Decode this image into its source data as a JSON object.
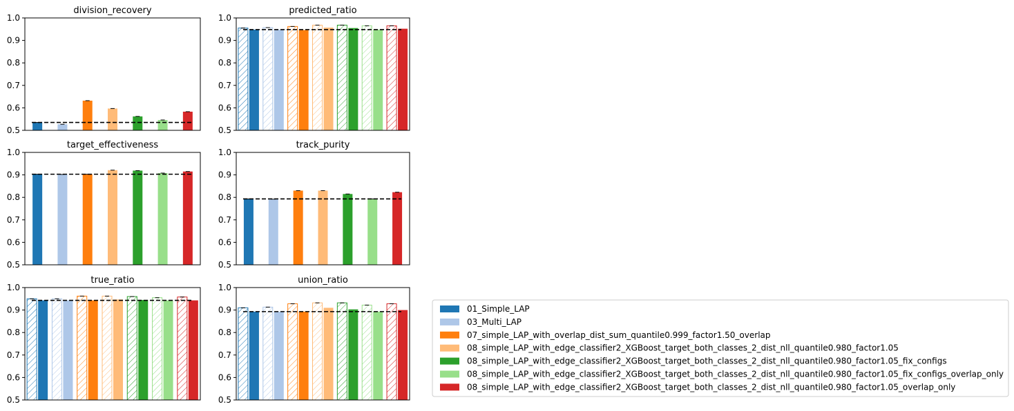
{
  "colors": [
    "#1f77b4",
    "#aec7e8",
    "#ff7f0e",
    "#ffbb78",
    "#2ca02c",
    "#98df8a",
    "#d62728"
  ],
  "legend": {
    "placement": "lower-right",
    "entries": [
      "01_Simple_LAP",
      "03_Multi_LAP",
      "07_simple_LAP_with_overlap_dist_sum_quantile0.999_factor1.50_overlap",
      "08_simple_LAP_with_edge_classifier2_XGBoost_target_both_classes_2_dist_nll_quantile0.980_factor1.05",
      "08_simple_LAP_with_edge_classifier2_XGBoost_target_both_classes_2_dist_nll_quantile0.980_factor1.05_fix_configs",
      "08_simple_LAP_with_edge_classifier2_XGBoost_target_both_classes_2_dist_nll_quantile0.980_factor1.05_fix_configs_overlap_only",
      "08_simple_LAP_with_edge_classifier2_XGBoost_target_both_classes_2_dist_nll_quantile0.980_factor1.05_overlap_only"
    ]
  },
  "chart_data": [
    {
      "type": "bar",
      "title": "division_recovery",
      "ylim": [
        0.5,
        1.0
      ],
      "yticks": [
        "0.5",
        "0.6",
        "0.7",
        "0.8",
        "0.9",
        "1.0"
      ],
      "grid": false,
      "paired": false,
      "reference_line": 0.535,
      "series": [
        {
          "name": "01_Simple_LAP",
          "values": [
            0.535
          ]
        },
        {
          "name": "03_Multi_LAP",
          "values": [
            0.527
          ]
        },
        {
          "name": "07_simple_LAP_with_overlap_dist_sum_quantile0.999_factor1.50_overlap",
          "values": [
            0.632
          ]
        },
        {
          "name": "08_simple_LAP_with_edge_classifier2_XGBoost_target_both_classes_2_dist_nll_quantile0.980_factor1.05",
          "values": [
            0.597
          ]
        },
        {
          "name": "08_simple_LAP_with_edge_classifier2_XGBoost_target_both_classes_2_dist_nll_quantile0.980_factor1.05_fix_configs",
          "values": [
            0.562
          ]
        },
        {
          "name": "08_simple_LAP_with_edge_classifier2_XGBoost_target_both_classes_2_dist_nll_quantile0.980_factor1.05_fix_configs_overlap_only",
          "values": [
            0.546
          ]
        },
        {
          "name": "08_simple_LAP_with_edge_classifier2_XGBoost_target_both_classes_2_dist_nll_quantile0.980_factor1.05_overlap_only",
          "values": [
            0.583
          ]
        }
      ]
    },
    {
      "type": "bar",
      "title": "predicted_ratio",
      "ylim": [
        0.5,
        1.0
      ],
      "yticks": [
        "0.5",
        "0.6",
        "0.7",
        "0.8",
        "0.9",
        "1.0"
      ],
      "grid": false,
      "paired": true,
      "reference_line": 0.948,
      "series": [
        {
          "name": "01_Simple_LAP",
          "values": [
            0.955,
            0.948
          ]
        },
        {
          "name": "03_Multi_LAP",
          "values": [
            0.957,
            0.948
          ]
        },
        {
          "name": "07_simple_LAP_with_overlap_dist_sum_quantile0.999_factor1.50_overlap",
          "values": [
            0.962,
            0.946
          ]
        },
        {
          "name": "08_simple_LAP_with_edge_classifier2_XGBoost_target_both_classes_2_dist_nll_quantile0.980_factor1.05",
          "values": [
            0.968,
            0.957
          ]
        },
        {
          "name": "08_simple_LAP_with_edge_classifier2_XGBoost_target_both_classes_2_dist_nll_quantile0.980_factor1.05_fix_configs",
          "values": [
            0.968,
            0.955
          ]
        },
        {
          "name": "08_simple_LAP_with_edge_classifier2_XGBoost_target_both_classes_2_dist_nll_quantile0.980_factor1.05_fix_configs_overlap_only",
          "values": [
            0.965,
            0.948
          ]
        },
        {
          "name": "08_simple_LAP_with_edge_classifier2_XGBoost_target_both_classes_2_dist_nll_quantile0.980_factor1.05_overlap_only",
          "values": [
            0.965,
            0.952
          ]
        }
      ]
    },
    {
      "type": "bar",
      "title": "target_effectiveness",
      "ylim": [
        0.5,
        1.0
      ],
      "yticks": [
        "0.5",
        "0.6",
        "0.7",
        "0.8",
        "0.9",
        "1.0"
      ],
      "grid": false,
      "paired": false,
      "reference_line": 0.903,
      "series": [
        {
          "name": "01_Simple_LAP",
          "values": [
            0.903
          ]
        },
        {
          "name": "03_Multi_LAP",
          "values": [
            0.902
          ]
        },
        {
          "name": "07_simple_LAP_with_overlap_dist_sum_quantile0.999_factor1.50_overlap",
          "values": [
            0.903
          ]
        },
        {
          "name": "08_simple_LAP_with_edge_classifier2_XGBoost_target_both_classes_2_dist_nll_quantile0.980_factor1.05",
          "values": [
            0.921
          ]
        },
        {
          "name": "08_simple_LAP_with_edge_classifier2_XGBoost_target_both_classes_2_dist_nll_quantile0.980_factor1.05_fix_configs",
          "values": [
            0.919
          ]
        },
        {
          "name": "08_simple_LAP_with_edge_classifier2_XGBoost_target_both_classes_2_dist_nll_quantile0.980_factor1.05_fix_configs_overlap_only",
          "values": [
            0.908
          ]
        },
        {
          "name": "08_simple_LAP_with_edge_classifier2_XGBoost_target_both_classes_2_dist_nll_quantile0.980_factor1.05_overlap_only",
          "values": [
            0.915
          ]
        }
      ]
    },
    {
      "type": "bar",
      "title": "track_purity",
      "ylim": [
        0.5,
        1.0
      ],
      "yticks": [
        "0.5",
        "0.6",
        "0.7",
        "0.8",
        "0.9",
        "1.0"
      ],
      "grid": false,
      "paired": false,
      "reference_line": 0.793,
      "series": [
        {
          "name": "01_Simple_LAP",
          "values": [
            0.793
          ]
        },
        {
          "name": "03_Multi_LAP",
          "values": [
            0.792
          ]
        },
        {
          "name": "07_simple_LAP_with_overlap_dist_sum_quantile0.999_factor1.50_overlap",
          "values": [
            0.83
          ]
        },
        {
          "name": "08_simple_LAP_with_edge_classifier2_XGBoost_target_both_classes_2_dist_nll_quantile0.980_factor1.05",
          "values": [
            0.83
          ]
        },
        {
          "name": "08_simple_LAP_with_edge_classifier2_XGBoost_target_both_classes_2_dist_nll_quantile0.980_factor1.05_fix_configs",
          "values": [
            0.815
          ]
        },
        {
          "name": "08_simple_LAP_with_edge_classifier2_XGBoost_target_both_classes_2_dist_nll_quantile0.980_factor1.05_fix_configs_overlap_only",
          "values": [
            0.793
          ]
        },
        {
          "name": "08_simple_LAP_with_edge_classifier2_XGBoost_target_both_classes_2_dist_nll_quantile0.980_factor1.05_overlap_only",
          "values": [
            0.823
          ]
        }
      ]
    },
    {
      "type": "bar",
      "title": "true_ratio",
      "ylim": [
        0.5,
        1.0
      ],
      "yticks": [
        "0.5",
        "0.6",
        "0.7",
        "0.8",
        "0.9",
        "1.0"
      ],
      "grid": false,
      "paired": true,
      "reference_line": 0.943,
      "series": [
        {
          "name": "01_Simple_LAP",
          "values": [
            0.95,
            0.943
          ]
        },
        {
          "name": "03_Multi_LAP",
          "values": [
            0.95,
            0.943
          ]
        },
        {
          "name": "07_simple_LAP_with_overlap_dist_sum_quantile0.999_factor1.50_overlap",
          "values": [
            0.962,
            0.943
          ]
        },
        {
          "name": "08_simple_LAP_with_edge_classifier2_XGBoost_target_both_classes_2_dist_nll_quantile0.980_factor1.05",
          "values": [
            0.962,
            0.947
          ]
        },
        {
          "name": "08_simple_LAP_with_edge_classifier2_XGBoost_target_both_classes_2_dist_nll_quantile0.980_factor1.05_fix_configs",
          "values": [
            0.96,
            0.945
          ]
        },
        {
          "name": "08_simple_LAP_with_edge_classifier2_XGBoost_target_both_classes_2_dist_nll_quantile0.980_factor1.05_fix_configs_overlap_only",
          "values": [
            0.955,
            0.943
          ]
        },
        {
          "name": "08_simple_LAP_with_edge_classifier2_XGBoost_target_both_classes_2_dist_nll_quantile0.980_factor1.05_overlap_only",
          "values": [
            0.958,
            0.943
          ]
        }
      ]
    },
    {
      "type": "bar",
      "title": "union_ratio",
      "ylim": [
        0.5,
        1.0
      ],
      "yticks": [
        "0.5",
        "0.6",
        "0.7",
        "0.8",
        "0.9",
        "1.0"
      ],
      "grid": false,
      "paired": true,
      "reference_line": 0.893,
      "series": [
        {
          "name": "01_Simple_LAP",
          "values": [
            0.91,
            0.893
          ]
        },
        {
          "name": "03_Multi_LAP",
          "values": [
            0.913,
            0.893
          ]
        },
        {
          "name": "07_simple_LAP_with_overlap_dist_sum_quantile0.999_factor1.50_overlap",
          "values": [
            0.928,
            0.893
          ]
        },
        {
          "name": "08_simple_LAP_with_edge_classifier2_XGBoost_target_both_classes_2_dist_nll_quantile0.980_factor1.05",
          "values": [
            0.932,
            0.91
          ]
        },
        {
          "name": "08_simple_LAP_with_edge_classifier2_XGBoost_target_both_classes_2_dist_nll_quantile0.980_factor1.05_fix_configs",
          "values": [
            0.932,
            0.903
          ]
        },
        {
          "name": "08_simple_LAP_with_edge_classifier2_XGBoost_target_both_classes_2_dist_nll_quantile0.980_factor1.05_fix_configs_overlap_only",
          "values": [
            0.922,
            0.893
          ]
        },
        {
          "name": "08_simple_LAP_with_edge_classifier2_XGBoost_target_both_classes_2_dist_nll_quantile0.980_factor1.05_overlap_only",
          "values": [
            0.928,
            0.9
          ]
        }
      ]
    }
  ]
}
